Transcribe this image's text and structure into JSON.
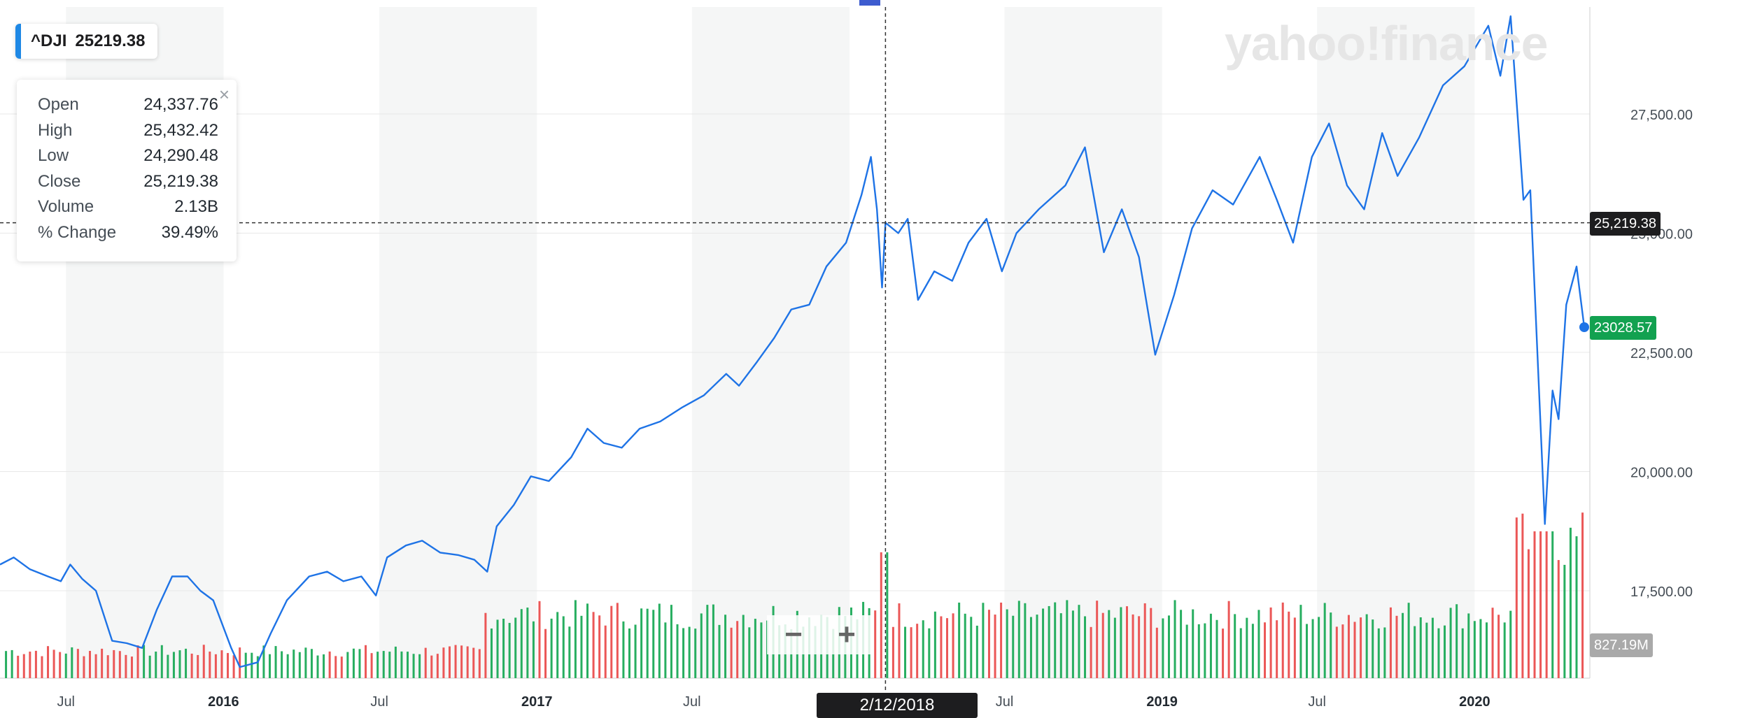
{
  "ticker": {
    "symbol": "^DJI",
    "price": "25219.38"
  },
  "ohlc": {
    "rows": [
      {
        "label": "Open",
        "value": "24,337.76"
      },
      {
        "label": "High",
        "value": "25,432.42"
      },
      {
        "label": "Low",
        "value": "24,290.48"
      },
      {
        "label": "Close",
        "value": "25,219.38"
      },
      {
        "label": "Volume",
        "value": "2.13B"
      },
      {
        "label": "% Change",
        "value": "39.49%"
      }
    ],
    "close_label": "×"
  },
  "watermark": "yahoo!finance",
  "crosshair": {
    "date_label": "2/12/2018",
    "price_label": "25,219.38"
  },
  "last_price_label": "23028.57",
  "last_volume_label": "827.19M",
  "zoom": {
    "minus": "−",
    "plus": "+"
  },
  "colors": {
    "line": "#1e73e6",
    "up": "#27ae60",
    "down": "#eb5757",
    "last_price_bg": "#12a150",
    "volume_tag_bg": "#a9a9a9",
    "band": "#f5f6f6"
  },
  "chart_data": {
    "type": "line",
    "title": "",
    "xlabel": "",
    "ylabel": "",
    "x_ticks": [
      "Jul",
      "2016",
      "Jul",
      "2017",
      "Jul",
      "2018",
      "Jul",
      "2019",
      "Jul",
      "2020"
    ],
    "y_ticks": [
      "27,500.00",
      "25,000.00",
      "22,500.00",
      "20,000.00",
      "17,500.00"
    ],
    "ylim": [
      15800,
      29300
    ],
    "x_range": [
      "2015-04-15",
      "2020-05-08"
    ],
    "close": [
      [
        "2015-04-15",
        18050
      ],
      [
        "2015-05-01",
        18200
      ],
      [
        "2015-05-20",
        17950
      ],
      [
        "2015-06-10",
        17800
      ],
      [
        "2015-06-25",
        17700
      ],
      [
        "2015-07-06",
        18050
      ],
      [
        "2015-07-20",
        17750
      ],
      [
        "2015-08-05",
        17500
      ],
      [
        "2015-08-24",
        16450
      ],
      [
        "2015-09-10",
        16400
      ],
      [
        "2015-09-28",
        16300
      ],
      [
        "2015-10-15",
        17100
      ],
      [
        "2015-11-02",
        17800
      ],
      [
        "2015-11-20",
        17800
      ],
      [
        "2015-12-05",
        17500
      ],
      [
        "2015-12-20",
        17300
      ],
      [
        "2016-01-10",
        16300
      ],
      [
        "2016-01-20",
        15900
      ],
      [
        "2016-02-10",
        16000
      ],
      [
        "2016-02-25",
        16600
      ],
      [
        "2016-03-15",
        17300
      ],
      [
        "2016-04-10",
        17800
      ],
      [
        "2016-05-01",
        17900
      ],
      [
        "2016-05-20",
        17700
      ],
      [
        "2016-06-10",
        17800
      ],
      [
        "2016-06-27",
        17400
      ],
      [
        "2016-07-10",
        18200
      ],
      [
        "2016-08-01",
        18450
      ],
      [
        "2016-08-20",
        18550
      ],
      [
        "2016-09-10",
        18300
      ],
      [
        "2016-10-01",
        18250
      ],
      [
        "2016-10-20",
        18150
      ],
      [
        "2016-11-04",
        17900
      ],
      [
        "2016-11-15",
        18850
      ],
      [
        "2016-12-05",
        19300
      ],
      [
        "2016-12-25",
        19900
      ],
      [
        "2017-01-15",
        19800
      ],
      [
        "2017-02-10",
        20300
      ],
      [
        "2017-03-01",
        20900
      ],
      [
        "2017-03-20",
        20600
      ],
      [
        "2017-04-10",
        20500
      ],
      [
        "2017-05-01",
        20900
      ],
      [
        "2017-05-25",
        21050
      ],
      [
        "2017-06-20",
        21350
      ],
      [
        "2017-07-15",
        21600
      ],
      [
        "2017-08-10",
        22050
      ],
      [
        "2017-08-25",
        21800
      ],
      [
        "2017-09-15",
        22300
      ],
      [
        "2017-10-05",
        22800
      ],
      [
        "2017-10-25",
        23400
      ],
      [
        "2017-11-15",
        23500
      ],
      [
        "2017-12-05",
        24300
      ],
      [
        "2017-12-28",
        24800
      ],
      [
        "2018-01-15",
        25800
      ],
      [
        "2018-01-26",
        26600
      ],
      [
        "2018-02-02",
        25500
      ],
      [
        "2018-02-08",
        23860
      ],
      [
        "2018-02-12",
        25219
      ],
      [
        "2018-02-27",
        25000
      ],
      [
        "2018-03-10",
        25300
      ],
      [
        "2018-03-22",
        23600
      ],
      [
        "2018-04-10",
        24200
      ],
      [
        "2018-05-01",
        24000
      ],
      [
        "2018-05-20",
        24800
      ],
      [
        "2018-06-10",
        25300
      ],
      [
        "2018-06-28",
        24200
      ],
      [
        "2018-07-15",
        25000
      ],
      [
        "2018-08-10",
        25500
      ],
      [
        "2018-09-10",
        26000
      ],
      [
        "2018-10-03",
        26800
      ],
      [
        "2018-10-25",
        24600
      ],
      [
        "2018-11-15",
        25500
      ],
      [
        "2018-12-05",
        24500
      ],
      [
        "2018-12-24",
        22450
      ],
      [
        "2019-01-15",
        23700
      ],
      [
        "2019-02-05",
        25100
      ],
      [
        "2019-03-01",
        25900
      ],
      [
        "2019-03-25",
        25600
      ],
      [
        "2019-04-25",
        26600
      ],
      [
        "2019-05-15",
        25700
      ],
      [
        "2019-06-03",
        24800
      ],
      [
        "2019-06-25",
        26600
      ],
      [
        "2019-07-15",
        27300
      ],
      [
        "2019-08-05",
        26000
      ],
      [
        "2019-08-25",
        25500
      ],
      [
        "2019-09-15",
        27100
      ],
      [
        "2019-10-03",
        26200
      ],
      [
        "2019-10-28",
        27000
      ],
      [
        "2019-11-25",
        28100
      ],
      [
        "2019-12-20",
        28500
      ],
      [
        "2020-01-17",
        29350
      ],
      [
        "2020-01-31",
        28300
      ],
      [
        "2020-02-12",
        29550
      ],
      [
        "2020-02-27",
        25700
      ],
      [
        "2020-03-06",
        25900
      ],
      [
        "2020-03-23",
        18900
      ],
      [
        "2020-04-01",
        21700
      ],
      [
        "2020-04-08",
        21100
      ],
      [
        "2020-04-17",
        23500
      ],
      [
        "2020-04-29",
        24300
      ],
      [
        "2020-05-08",
        23028
      ]
    ],
    "volume": {
      "seed_note": "",
      "max_label": ""
    }
  }
}
